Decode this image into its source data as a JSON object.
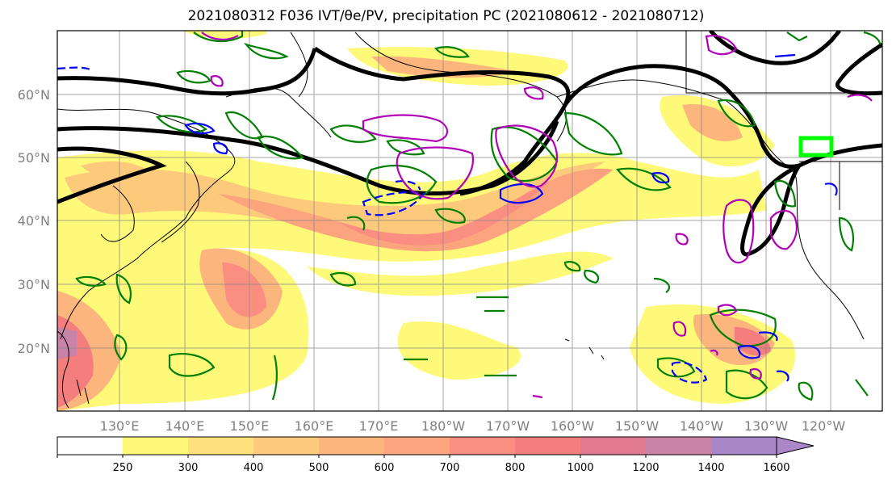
{
  "title": "2021080312 F036 IVT/θe/PV, precipitation PC (2021080612 - 2021080712)",
  "latitude_labels": [
    "60°N",
    "50°N",
    "40°N",
    "30°N",
    "20°N"
  ],
  "longitude_labels": [
    "130°E",
    "140°E",
    "150°E",
    "160°E",
    "170°E",
    "180°W",
    "170°W",
    "160°W",
    "150°W",
    "140°W",
    "130°W",
    "120°W"
  ],
  "colorbar": {
    "ticks": [
      "250",
      "300",
      "400",
      "500",
      "600",
      "700",
      "800",
      "1000",
      "1200",
      "1400",
      "1600"
    ],
    "colors": [
      "#ffffff",
      "#fff97a",
      "#fee07c",
      "#fdca7c",
      "#fcb67d",
      "#fba47e",
      "#fa8e80",
      "#f47d7d",
      "#e07b8f",
      "#c982a8",
      "#a987c9"
    ]
  },
  "colors": {
    "theta_e_contour": "#000000",
    "pv_positive": "#008000",
    "pv_negative": "#0000ff",
    "precip_pc": "#b000b8",
    "target_box": "#00ff00",
    "coastline": "#000000"
  }
}
